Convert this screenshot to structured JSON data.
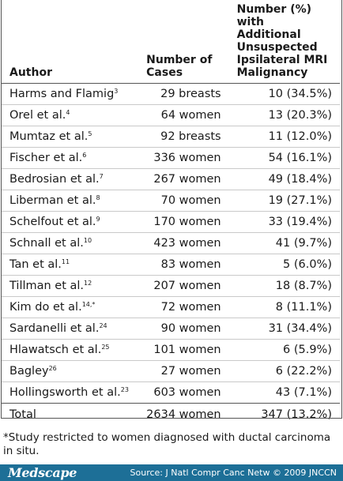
{
  "table": {
    "headers": {
      "author": "Author",
      "cases": [
        "Number of",
        "Cases"
      ],
      "number": [
        "Number (%) with",
        "Additional",
        "Unsuspected",
        "Ipsilateral MRI",
        "Malignancy"
      ]
    },
    "rows": [
      {
        "author": "Harms and Flamig",
        "ref": "3",
        "cases": "29 breasts",
        "number": "10 (34.5%)"
      },
      {
        "author": "Orel et al.",
        "ref": "4",
        "cases": "64 women",
        "number": "13 (20.3%)"
      },
      {
        "author": "Mumtaz et al.",
        "ref": "5",
        "cases": "92 breasts",
        "number": "11 (12.0%)"
      },
      {
        "author": "Fischer et al.",
        "ref": "6",
        "cases": "336 women",
        "number": "54 (16.1%)"
      },
      {
        "author": "Bedrosian et al.",
        "ref": "7",
        "cases": "267 women",
        "number": "49 (18.4%)"
      },
      {
        "author": "Liberman et al.",
        "ref": "8",
        "cases": "70 women",
        "number": "19 (27.1%)"
      },
      {
        "author": "Schelfout et al.",
        "ref": "9",
        "cases": "170 women",
        "number": "33 (19.4%)"
      },
      {
        "author": "Schnall et al.",
        "ref": "10",
        "cases": "423 women",
        "number": "41 (9.7%)"
      },
      {
        "author": "Tan et al.",
        "ref": "11",
        "cases": "83 women",
        "number": "5 (6.0%)"
      },
      {
        "author": "Tillman et al.",
        "ref": "12",
        "cases": "207 women",
        "number": "18 (8.7%)"
      },
      {
        "author": "Kim do et al.",
        "ref": "14,*",
        "cases": "72 women",
        "number": "8 (11.1%)"
      },
      {
        "author": "Sardanelli et al.",
        "ref": "24",
        "cases": "90 women",
        "number": "31 (34.4%)"
      },
      {
        "author": "Hlawatsch et al.",
        "ref": "25",
        "cases": "101 women",
        "number": "6 (5.9%)"
      },
      {
        "author": "Bagley",
        "ref": "26",
        "cases": "27 women",
        "number": "6 (22.2%)"
      },
      {
        "author": "Hollingsworth et al.",
        "ref": "23",
        "cases": "603 women",
        "number": "43 (7.1%)"
      }
    ],
    "total": {
      "author": "Total",
      "cases": "2634 women",
      "number": "347 (13.2%)"
    }
  },
  "footnote": "*Study restricted to women diagnosed with ductal carcinoma in situ.",
  "footer": {
    "logo": "Medscape",
    "source": "Source: J Natl Compr Canc Netw © 2009 JNCCN",
    "background": "#1d6f97"
  }
}
